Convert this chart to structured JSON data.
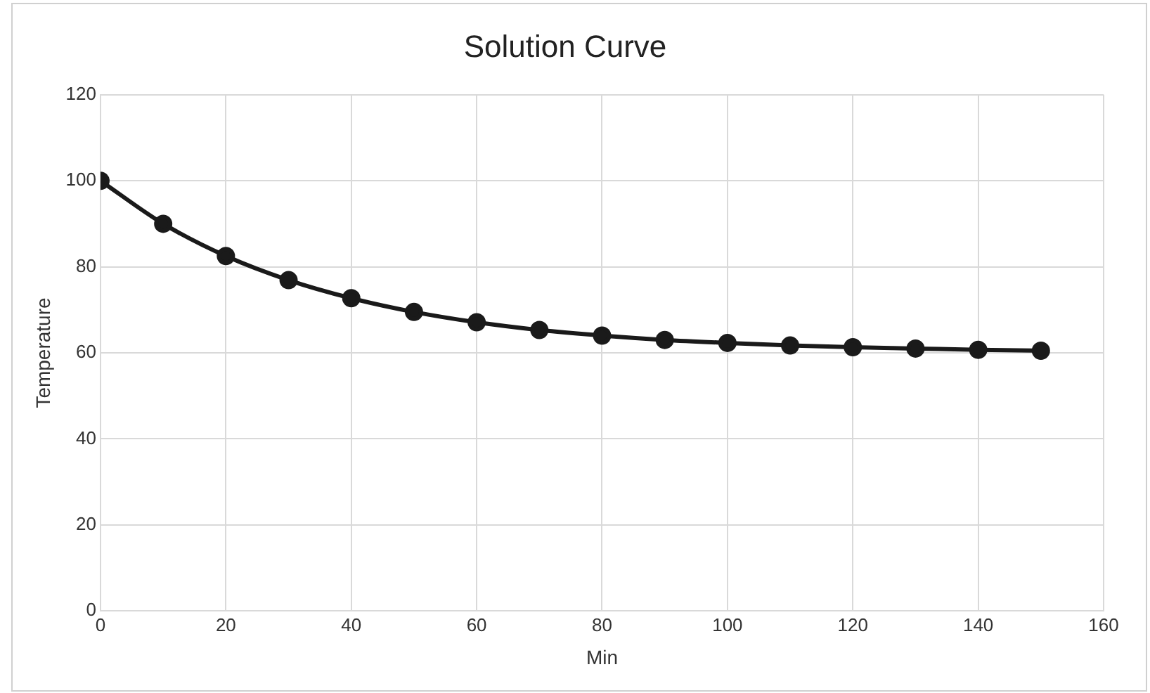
{
  "chart_data": {
    "type": "line",
    "title": "Solution Curve",
    "xlabel": "Min",
    "ylabel": "Temperature",
    "x": [
      0,
      10,
      20,
      30,
      40,
      50,
      60,
      70,
      80,
      90,
      100,
      110,
      120,
      130,
      140,
      150
    ],
    "series": [
      {
        "color": "#1a1a1a",
        "values": [
          100,
          90,
          82.5,
          76.9,
          72.7,
          69.5,
          67.1,
          65.3,
          64,
          63,
          62.3,
          61.7,
          61.3,
          61,
          60.7,
          60.5
        ]
      }
    ],
    "xlim": [
      0,
      160
    ],
    "xticks": [
      0,
      20,
      40,
      60,
      80,
      100,
      120,
      140,
      160
    ],
    "ylim": [
      0,
      120
    ],
    "yticks": [
      0,
      20,
      40,
      60,
      80,
      100,
      120
    ],
    "grid": true,
    "legend": false,
    "marker": "circle",
    "line_style": "solid"
  }
}
